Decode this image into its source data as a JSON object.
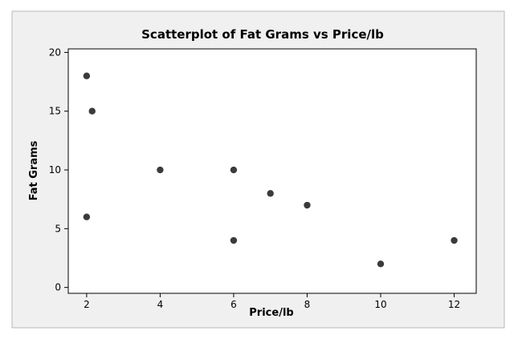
{
  "chart_data": {
    "type": "scatter",
    "title": "Scatterplot of Fat Grams vs Price/lb",
    "xlabel": "Price/lb",
    "ylabel": "Fat Grams",
    "xlim": [
      1.5,
      12.6
    ],
    "ylim": [
      -0.5,
      20.3
    ],
    "xticks": [
      2,
      4,
      6,
      8,
      10,
      12
    ],
    "yticks": [
      0,
      5,
      10,
      15,
      20
    ],
    "grid": false,
    "point_color": "#3b3b3b",
    "points": [
      {
        "x": 2,
        "y": 18
      },
      {
        "x": 2.15,
        "y": 15
      },
      {
        "x": 2,
        "y": 6
      },
      {
        "x": 4,
        "y": 10
      },
      {
        "x": 6,
        "y": 10
      },
      {
        "x": 6,
        "y": 4
      },
      {
        "x": 7,
        "y": 8
      },
      {
        "x": 8,
        "y": 7
      },
      {
        "x": 10,
        "y": 2
      },
      {
        "x": 12,
        "y": 4
      }
    ]
  }
}
